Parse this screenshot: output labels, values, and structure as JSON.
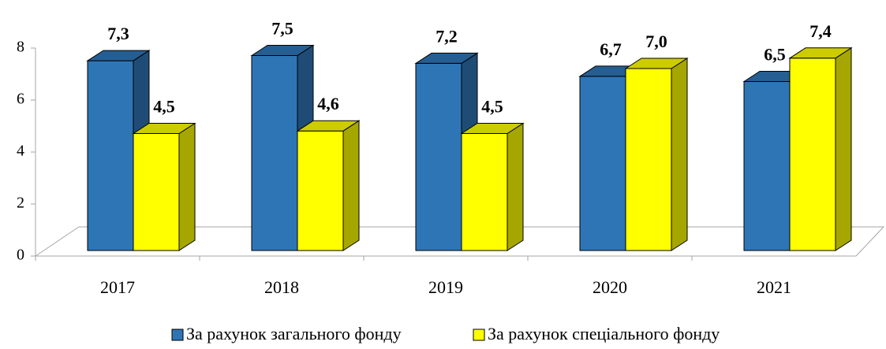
{
  "chart_data": {
    "type": "bar3d",
    "categories": [
      "2017",
      "2018",
      "2019",
      "2020",
      "2021"
    ],
    "series": [
      {
        "name": "За рахунок загального фонду",
        "color": "#2e75b6",
        "values": [
          7.3,
          7.5,
          7.2,
          6.7,
          6.5
        ],
        "value_labels": [
          "7,3",
          "7,5",
          "7,2",
          "6,7",
          "6,5"
        ]
      },
      {
        "name": "За рахунок спеціального фонду",
        "color": "#ffff00",
        "values": [
          4.5,
          4.6,
          4.5,
          7.0,
          7.4
        ],
        "value_labels": [
          "4,5",
          "4,6",
          "4,5",
          "7,0",
          "7,4"
        ]
      }
    ],
    "ylim": [
      0,
      8
    ],
    "yticks": [
      0,
      2,
      4,
      6,
      8
    ]
  }
}
